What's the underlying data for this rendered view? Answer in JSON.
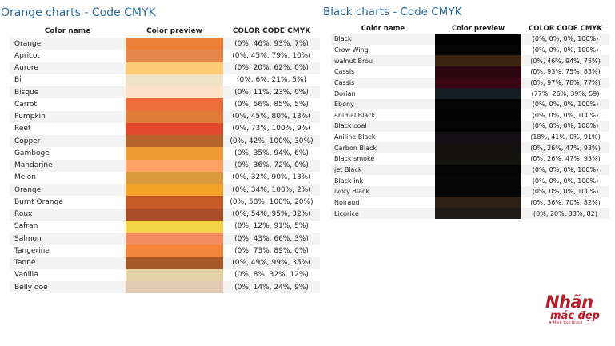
{
  "orange": {
    "title": "Orange charts - Code CMYK",
    "headers": {
      "name": "Color name",
      "preview": "Color preview",
      "code": "COLOR CODE CMYK"
    },
    "rows": [
      {
        "name": "Orange",
        "code": "(0%, 46%, 93%, 7%)",
        "color": "#ec8036"
      },
      {
        "name": "Apricot",
        "code": "(0%, 45%, 79%, 10%)",
        "color": "#e68549"
      },
      {
        "name": "Aurore",
        "code": "(0%, 20%, 62%, 0%)",
        "color": "#fbcb77"
      },
      {
        "name": "Bi",
        "code": "(0%, 6%, 21%, 5%)",
        "color": "#efe3c5"
      },
      {
        "name": "Bisque",
        "code": "(0%, 11%, 23%, 0%)",
        "color": "#fde2c8"
      },
      {
        "name": "Carrot",
        "code": "(0%, 56%, 85%, 5%)",
        "color": "#ef6d3b"
      },
      {
        "name": "Pumpkin",
        "code": "(0%, 45%, 80%, 13%)",
        "color": "#de7c3a"
      },
      {
        "name": "Reef",
        "code": "(0%, 73%, 100%, 9%)",
        "color": "#e2482b"
      },
      {
        "name": "Copper",
        "code": "(0%, 42%, 100%, 30%)",
        "color": "#b5642c"
      },
      {
        "name": "Gamboge",
        "code": "(0%, 35%, 94%, 6%)",
        "color": "#ee9b38"
      },
      {
        "name": "Mandarine",
        "code": "(0%, 36%, 72%, 0%)",
        "color": "#fea265"
      },
      {
        "name": "Melon",
        "code": "(0%, 32%, 90%, 13%)",
        "color": "#dc9a3e"
      },
      {
        "name": "Orange",
        "code": "(0%, 34%, 100%, 2%)",
        "color": "#f5a229"
      },
      {
        "name": "Burnt Orange",
        "code": "(0%, 58%, 100%, 20%)",
        "color": "#c65b28"
      },
      {
        "name": "Roux",
        "code": "(0%, 54%, 95%, 32%)",
        "color": "#a84d26"
      },
      {
        "name": "Safran",
        "code": "(0%, 12%, 91%, 5%)",
        "color": "#f4d54a"
      },
      {
        "name": "Salmon",
        "code": "(0%, 43%, 66%, 3%)",
        "color": "#f08c5e"
      },
      {
        "name": "Tangerine",
        "code": "(0%, 73%, 89%, 0%)",
        "color": "#f5853b"
      },
      {
        "name": "Tanné",
        "code": "(0%, 49%, 99%, 35%)",
        "color": "#a55928"
      },
      {
        "name": "Vanilla",
        "code": "(0%, 8%, 32%, 12%)",
        "color": "#e5d3a8"
      },
      {
        "name": "Belly doe",
        "code": "(0%, 14%, 24%, 9%)",
        "color": "#e3cab5"
      }
    ]
  },
  "black": {
    "title": "Black charts - Code CMYK",
    "headers": {
      "name": "Color name",
      "preview": "Color preview",
      "code": "COLOR CODE CMYK"
    },
    "rows": [
      {
        "name": "Black",
        "code": "(0%, 0%, 0%, 100%)",
        "color": "#000000"
      },
      {
        "name": "Crow Wing",
        "code": "(0%, 0%, 0%, 100%)",
        "color": "#050505"
      },
      {
        "name": "walnut Brou",
        "code": "(0%, 46%, 94%, 75%)",
        "color": "#3d2410"
      },
      {
        "name": "Cassis",
        "code": "(0%, 93%, 75%, 83%)",
        "color": "#2c0712"
      },
      {
        "name": "Cassis",
        "code": "(0%, 97%, 78%, 77%)",
        "color": "#3a0515"
      },
      {
        "name": "Dorian",
        "code": "(77%, 26%, 39%, 59)",
        "color": "#141d21"
      },
      {
        "name": "Ebony",
        "code": "(0%, 0%, 0%, 100%)",
        "color": "#050505"
      },
      {
        "name": "animal Black",
        "code": "(0%, 0%, 0%, 100%)",
        "color": "#030303"
      },
      {
        "name": "Black coal",
        "code": "(0%, 0%, 0%, 100%)",
        "color": "#050505"
      },
      {
        "name": "Aniline Black",
        "code": "(18%, 41%, 0%, 91%)",
        "color": "#141015"
      },
      {
        "name": "Carbon Black",
        "code": "(0%, 26%, 47%, 93%)",
        "color": "#141210"
      },
      {
        "name": "Black smoke",
        "code": "(0%, 26%, 47%, 93%)",
        "color": "#151310"
      },
      {
        "name": "jet Black",
        "code": "(0%, 0%, 0%, 100%)",
        "color": "#040404"
      },
      {
        "name": "Black ink",
        "code": "(0%, 0%, 0%, 100%)",
        "color": "#060606"
      },
      {
        "name": "ivory Black",
        "code": "(0%, 0%, 0%, 100%)",
        "color": "#070707"
      },
      {
        "name": "Noiraud",
        "code": "(0%, 36%, 70%, 82%)",
        "color": "#2e2015"
      },
      {
        "name": "Licorice",
        "code": "(0%, 20%, 33%, 82)",
        "color": "#1d1a17"
      }
    ]
  },
  "logo": {
    "line1": "Nhãn",
    "line2": "mác đẹp",
    "tagline": "❖ Mark Your Brand"
  }
}
